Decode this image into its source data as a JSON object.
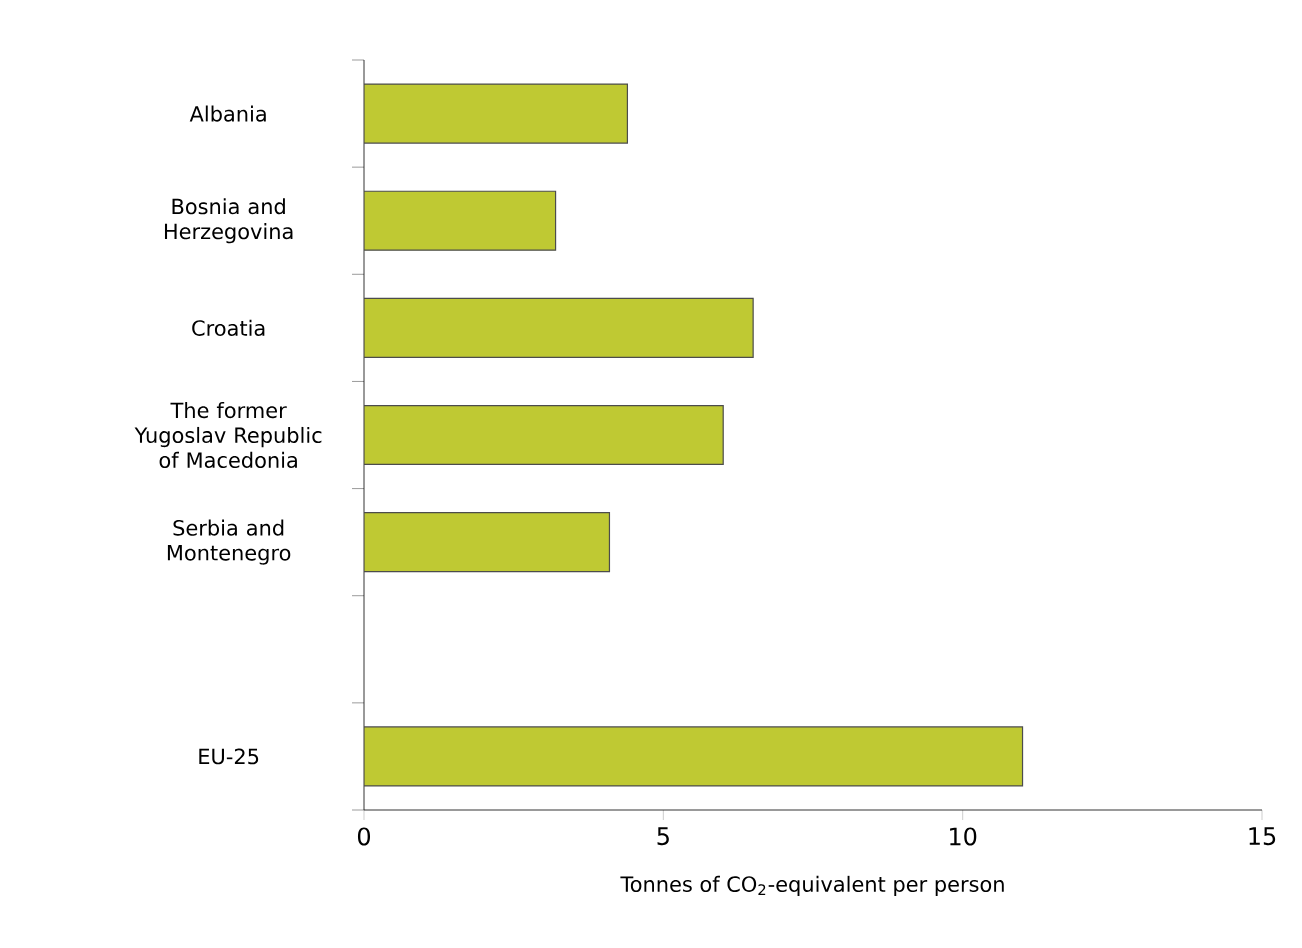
{
  "chart_data": {
    "type": "bar",
    "orientation": "horizontal",
    "categories": [
      "Albania",
      "Bosnia and Herzegovina",
      "Croatia",
      "The former Yugoslav Republic of Macedonia",
      "Serbia and Montenegro",
      null,
      "EU-25"
    ],
    "values": [
      4.4,
      3.2,
      6.5,
      6.0,
      4.1,
      null,
      11.0
    ],
    "color": "#bfc933",
    "xlim": [
      0,
      15
    ],
    "xticks": [
      0,
      5,
      10,
      15
    ],
    "xlabel": "Tonnes of CO$_{2}$-equivalent per person"
  }
}
